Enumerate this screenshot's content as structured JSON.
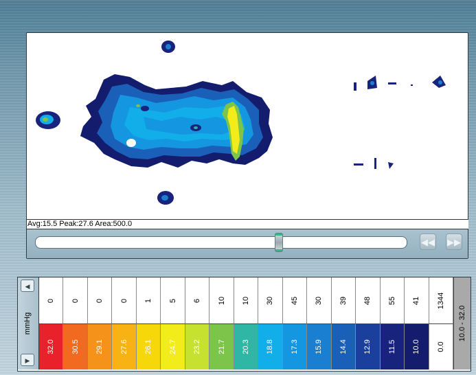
{
  "stats": {
    "text": "Avg:15.5  Peak:27.6  Area:500.0"
  },
  "controls": {
    "rewind_icon": "rewind-icon",
    "forward_icon": "fast-forward-icon",
    "playback_position": 0.7
  },
  "legend": {
    "unit": "mmHg",
    "range": "10.0 - 32.0",
    "counts": [
      "0",
      "0",
      "0",
      "0",
      "1",
      "5",
      "6",
      "10",
      "10",
      "30",
      "45",
      "30",
      "39",
      "48",
      "55",
      "41",
      "1344"
    ],
    "levels": [
      {
        "value": "32.0",
        "color": "#e8212b"
      },
      {
        "value": "30.5",
        "color": "#f26a1f"
      },
      {
        "value": "29.1",
        "color": "#f4921a"
      },
      {
        "value": "27.6",
        "color": "#f9b214"
      },
      {
        "value": "26.1",
        "color": "#f6d80a"
      },
      {
        "value": "24.7",
        "color": "#f2ec1a"
      },
      {
        "value": "23.2",
        "color": "#c6e130"
      },
      {
        "value": "21.7",
        "color": "#7dc54a"
      },
      {
        "value": "20.3",
        "color": "#2fb6a4"
      },
      {
        "value": "18.8",
        "color": "#12aee9"
      },
      {
        "value": "17.3",
        "color": "#1596e0"
      },
      {
        "value": "15.9",
        "color": "#1a7fd0"
      },
      {
        "value": "14.4",
        "color": "#1a5fb8"
      },
      {
        "value": "12.9",
        "color": "#1a3f9c"
      },
      {
        "value": "11.5",
        "color": "#17237d"
      },
      {
        "value": "10.0",
        "color": "#141c6e"
      },
      {
        "value": "0.0",
        "color": "#ffffff"
      }
    ]
  }
}
